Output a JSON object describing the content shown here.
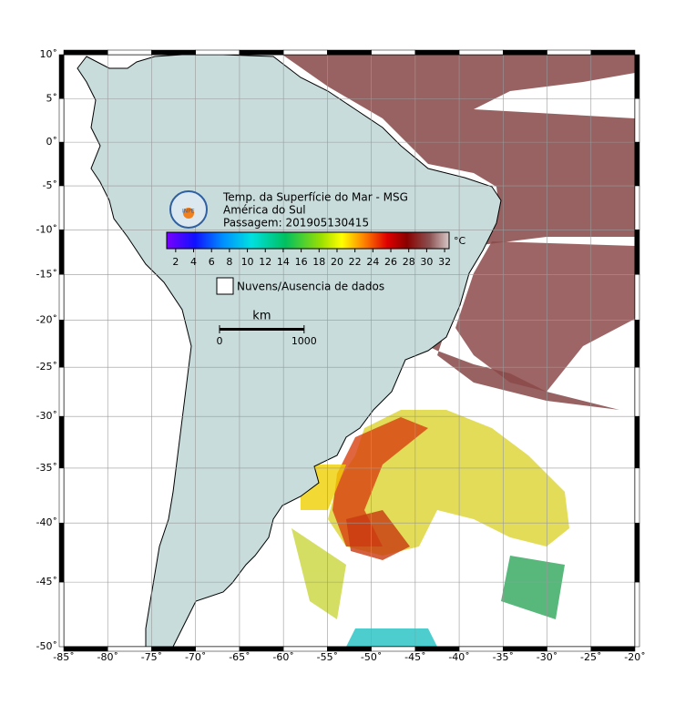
{
  "map": {
    "title_lines": [
      "Temp. da Superfície do Mar - MSG",
      "América do Sul",
      "Passagem: 201905130415"
    ],
    "logo_text": "INPE",
    "xlim": [
      -85,
      -20
    ],
    "ylim": [
      -50,
      10
    ],
    "xticks": [
      {
        "value": -85,
        "label": "-85˚"
      },
      {
        "value": -80,
        "label": "-80˚"
      },
      {
        "value": -75,
        "label": "-75˚"
      },
      {
        "value": -70,
        "label": "-70˚"
      },
      {
        "value": -65,
        "label": "-65˚"
      },
      {
        "value": -60,
        "label": "-60˚"
      },
      {
        "value": -55,
        "label": "-55˚"
      },
      {
        "value": -50,
        "label": "-50˚"
      },
      {
        "value": -45,
        "label": "-45˚"
      },
      {
        "value": -40,
        "label": "-40˚"
      },
      {
        "value": -35,
        "label": "-35˚"
      },
      {
        "value": -30,
        "label": "-30˚"
      },
      {
        "value": -25,
        "label": "-25˚"
      },
      {
        "value": -20,
        "label": "-20˚"
      }
    ],
    "yticks": [
      {
        "value": 10,
        "label": "10˚"
      },
      {
        "value": 5,
        "label": "5˚"
      },
      {
        "value": 0,
        "label": "0˚"
      },
      {
        "value": -5,
        "label": "-5˚"
      },
      {
        "value": -10,
        "label": "-10˚"
      },
      {
        "value": -15,
        "label": "-15˚"
      },
      {
        "value": -20,
        "label": "-20˚"
      },
      {
        "value": -25,
        "label": "-25˚"
      },
      {
        "value": -30,
        "label": "-30˚"
      },
      {
        "value": -35,
        "label": "-35˚"
      },
      {
        "value": -40,
        "label": "-40˚"
      },
      {
        "value": -45,
        "label": "-45˚"
      },
      {
        "value": -50,
        "label": "-50˚"
      }
    ],
    "grid": true,
    "colorbar": {
      "unit": "°C",
      "range": [
        1,
        32.5
      ],
      "ticks": [
        2,
        4,
        6,
        8,
        10,
        12,
        14,
        16,
        18,
        20,
        22,
        24,
        26,
        28,
        30,
        32
      ]
    },
    "legend": "Nuvens/Ausencia de dados",
    "scale_bar": {
      "unit": "km",
      "ticks": [
        0,
        1000
      ]
    }
  }
}
